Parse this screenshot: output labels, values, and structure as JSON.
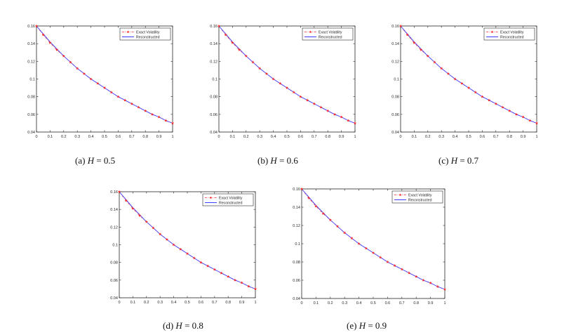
{
  "figure": {
    "series_colors": {
      "exact": "#ff2a2a",
      "reconstructed": "#4040ff"
    },
    "legend_entries": [
      "Exact Volatility",
      "Reconstructed"
    ]
  },
  "chart_data": [
    {
      "type": "line",
      "caption_prefix": "(a)",
      "caption_var": "H",
      "caption_value": "= 0.5",
      "xlim": [
        0,
        1
      ],
      "ylim": [
        0.04,
        0.16
      ],
      "xticks": [
        "0",
        "0.1",
        "0.2",
        "0.3",
        "0.4",
        "0.5",
        "0.6",
        "0.7",
        "0.8",
        "0.9",
        "1"
      ],
      "yticks": [
        "0.04",
        "0.06",
        "0.08",
        "0.1",
        "0.12",
        "0.14",
        "0.16"
      ],
      "legend_position": "top-right",
      "series": [
        {
          "name": "Exact Volatility",
          "style": "red dash-dot with star markers",
          "x": [
            0,
            0.05,
            0.1,
            0.15,
            0.2,
            0.25,
            0.3,
            0.35,
            0.4,
            0.45,
            0.5,
            0.55,
            0.6,
            0.65,
            0.7,
            0.75,
            0.8,
            0.85,
            0.9,
            0.95,
            1
          ],
          "y": [
            0.16,
            0.15,
            0.141,
            0.133,
            0.126,
            0.119,
            0.112,
            0.106,
            0.1,
            0.095,
            0.09,
            0.085,
            0.08,
            0.076,
            0.072,
            0.068,
            0.064,
            0.06,
            0.057,
            0.053,
            0.05
          ]
        },
        {
          "name": "Reconstructed",
          "style": "blue solid",
          "x": [
            0,
            0.05,
            0.1,
            0.15,
            0.2,
            0.25,
            0.3,
            0.35,
            0.4,
            0.45,
            0.5,
            0.55,
            0.6,
            0.65,
            0.7,
            0.75,
            0.8,
            0.85,
            0.9,
            0.95,
            1
          ],
          "y": [
            0.16,
            0.151,
            0.142,
            0.134,
            0.126,
            0.119,
            0.112,
            0.106,
            0.1,
            0.095,
            0.09,
            0.085,
            0.08,
            0.076,
            0.072,
            0.068,
            0.064,
            0.06,
            0.057,
            0.053,
            0.05
          ]
        }
      ]
    },
    {
      "type": "line",
      "caption_prefix": "(b)",
      "caption_var": "H",
      "caption_value": "= 0.6",
      "xlim": [
        0,
        1
      ],
      "ylim": [
        0.04,
        0.16
      ],
      "xticks": [
        "0",
        "0.1",
        "0.2",
        "0.3",
        "0.4",
        "0.5",
        "0.6",
        "0.7",
        "0.8",
        "0.9",
        "1"
      ],
      "yticks": [
        "0.04",
        "0.06",
        "0.08",
        "0.1",
        "0.12",
        "0.14",
        "0.16"
      ],
      "legend_position": "top-right",
      "series": [
        {
          "name": "Exact Volatility",
          "style": "red dash-dot with star markers",
          "x": [
            0,
            0.05,
            0.1,
            0.15,
            0.2,
            0.25,
            0.3,
            0.35,
            0.4,
            0.45,
            0.5,
            0.55,
            0.6,
            0.65,
            0.7,
            0.75,
            0.8,
            0.85,
            0.9,
            0.95,
            1
          ],
          "y": [
            0.16,
            0.15,
            0.141,
            0.133,
            0.126,
            0.119,
            0.112,
            0.106,
            0.1,
            0.095,
            0.09,
            0.085,
            0.08,
            0.076,
            0.072,
            0.068,
            0.064,
            0.06,
            0.057,
            0.053,
            0.05
          ]
        },
        {
          "name": "Reconstructed",
          "style": "blue solid",
          "x": [
            0,
            0.05,
            0.1,
            0.15,
            0.2,
            0.25,
            0.3,
            0.35,
            0.4,
            0.45,
            0.5,
            0.55,
            0.6,
            0.65,
            0.7,
            0.75,
            0.8,
            0.85,
            0.9,
            0.95,
            1
          ],
          "y": [
            0.16,
            0.151,
            0.142,
            0.134,
            0.126,
            0.119,
            0.112,
            0.106,
            0.1,
            0.095,
            0.09,
            0.085,
            0.08,
            0.076,
            0.072,
            0.068,
            0.064,
            0.06,
            0.057,
            0.053,
            0.05
          ]
        }
      ]
    },
    {
      "type": "line",
      "caption_prefix": "(c)",
      "caption_var": "H",
      "caption_value": "= 0.7",
      "xlim": [
        0,
        1
      ],
      "ylim": [
        0.04,
        0.16
      ],
      "xticks": [
        "0",
        "0.1",
        "0.2",
        "0.3",
        "0.4",
        "0.5",
        "0.6",
        "0.7",
        "0.8",
        "0.9",
        "1"
      ],
      "yticks": [
        "0.04",
        "0.06",
        "0.08",
        "0.1",
        "0.12",
        "0.14",
        "0.16"
      ],
      "legend_position": "top-right",
      "series": [
        {
          "name": "Exact Volatility",
          "style": "red dash-dot with star markers",
          "x": [
            0,
            0.05,
            0.1,
            0.15,
            0.2,
            0.25,
            0.3,
            0.35,
            0.4,
            0.45,
            0.5,
            0.55,
            0.6,
            0.65,
            0.7,
            0.75,
            0.8,
            0.85,
            0.9,
            0.95,
            1
          ],
          "y": [
            0.16,
            0.15,
            0.141,
            0.133,
            0.126,
            0.119,
            0.112,
            0.106,
            0.1,
            0.095,
            0.09,
            0.085,
            0.08,
            0.076,
            0.072,
            0.068,
            0.064,
            0.06,
            0.057,
            0.053,
            0.05
          ]
        },
        {
          "name": "Reconstructed",
          "style": "blue solid",
          "x": [
            0,
            0.05,
            0.1,
            0.15,
            0.2,
            0.25,
            0.3,
            0.35,
            0.4,
            0.45,
            0.5,
            0.55,
            0.6,
            0.65,
            0.7,
            0.75,
            0.8,
            0.85,
            0.9,
            0.95,
            1
          ],
          "y": [
            0.16,
            0.151,
            0.142,
            0.134,
            0.126,
            0.119,
            0.112,
            0.106,
            0.1,
            0.095,
            0.09,
            0.085,
            0.08,
            0.076,
            0.072,
            0.068,
            0.064,
            0.06,
            0.057,
            0.053,
            0.05
          ]
        }
      ]
    },
    {
      "type": "line",
      "caption_prefix": "(d)",
      "caption_var": "H",
      "caption_value": "= 0.8",
      "xlim": [
        0,
        1
      ],
      "ylim": [
        0.04,
        0.16
      ],
      "xticks": [
        "0",
        "0.1",
        "0.2",
        "0.3",
        "0.4",
        "0.5",
        "0.6",
        "0.7",
        "0.8",
        "0.9",
        "1"
      ],
      "yticks": [
        "0.04",
        "0.06",
        "0.08",
        "0.1",
        "0.12",
        "0.14",
        "0.16"
      ],
      "legend_position": "top-right",
      "series": [
        {
          "name": "Exact Volatility",
          "style": "red dash-dot with star markers",
          "x": [
            0,
            0.05,
            0.1,
            0.15,
            0.2,
            0.25,
            0.3,
            0.35,
            0.4,
            0.45,
            0.5,
            0.55,
            0.6,
            0.65,
            0.7,
            0.75,
            0.8,
            0.85,
            0.9,
            0.95,
            1
          ],
          "y": [
            0.16,
            0.15,
            0.141,
            0.133,
            0.126,
            0.119,
            0.112,
            0.106,
            0.1,
            0.095,
            0.09,
            0.085,
            0.08,
            0.076,
            0.072,
            0.068,
            0.064,
            0.06,
            0.057,
            0.053,
            0.05
          ]
        },
        {
          "name": "Reconstructed",
          "style": "blue solid",
          "x": [
            0,
            0.05,
            0.1,
            0.15,
            0.2,
            0.25,
            0.3,
            0.35,
            0.4,
            0.45,
            0.5,
            0.55,
            0.6,
            0.65,
            0.7,
            0.75,
            0.8,
            0.85,
            0.9,
            0.95,
            1
          ],
          "y": [
            0.16,
            0.151,
            0.142,
            0.134,
            0.126,
            0.119,
            0.112,
            0.106,
            0.1,
            0.095,
            0.09,
            0.085,
            0.08,
            0.076,
            0.072,
            0.068,
            0.064,
            0.06,
            0.057,
            0.053,
            0.05
          ]
        }
      ]
    },
    {
      "type": "line",
      "caption_prefix": "(e)",
      "caption_var": "H",
      "caption_value": "= 0.9",
      "xlim": [
        0,
        1
      ],
      "ylim": [
        0.04,
        0.16
      ],
      "xticks": [
        "0",
        "0.1",
        "0.2",
        "0.3",
        "0.4",
        "0.5",
        "0.6",
        "0.7",
        "0.8",
        "0.9",
        "1"
      ],
      "yticks": [
        "0.04",
        "0.06",
        "0.08",
        "0.1",
        "0.12",
        "0.14",
        "0.16"
      ],
      "legend_position": "top-right",
      "series": [
        {
          "name": "Exact Volatility",
          "style": "red dash-dot with star markers",
          "x": [
            0,
            0.05,
            0.1,
            0.15,
            0.2,
            0.25,
            0.3,
            0.35,
            0.4,
            0.45,
            0.5,
            0.55,
            0.6,
            0.65,
            0.7,
            0.75,
            0.8,
            0.85,
            0.9,
            0.95,
            1
          ],
          "y": [
            0.16,
            0.15,
            0.141,
            0.133,
            0.126,
            0.119,
            0.112,
            0.106,
            0.1,
            0.095,
            0.09,
            0.085,
            0.08,
            0.076,
            0.072,
            0.068,
            0.064,
            0.06,
            0.057,
            0.053,
            0.05
          ]
        },
        {
          "name": "Reconstructed",
          "style": "blue solid",
          "x": [
            0,
            0.05,
            0.1,
            0.15,
            0.2,
            0.25,
            0.3,
            0.35,
            0.4,
            0.45,
            0.5,
            0.55,
            0.6,
            0.65,
            0.7,
            0.75,
            0.8,
            0.85,
            0.9,
            0.95,
            1
          ],
          "y": [
            0.16,
            0.151,
            0.142,
            0.134,
            0.126,
            0.119,
            0.112,
            0.106,
            0.1,
            0.095,
            0.09,
            0.085,
            0.08,
            0.076,
            0.072,
            0.068,
            0.064,
            0.06,
            0.057,
            0.053,
            0.05
          ]
        }
      ]
    }
  ]
}
